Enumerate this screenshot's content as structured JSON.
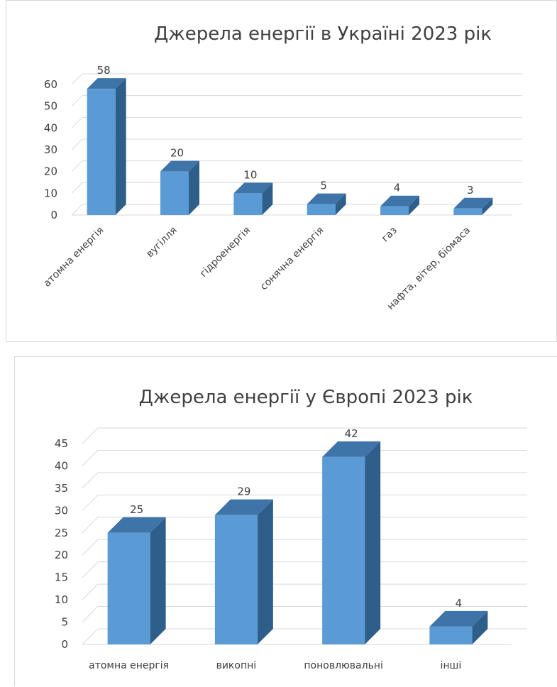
{
  "chart_data": [
    {
      "type": "bar",
      "title": "Джерела енергії в Україні 2023 рік",
      "categories": [
        "атомна енергія",
        "вугілля",
        "гідроенергія",
        "сонячна енергія",
        "газ",
        "нафта, вітер, біомаса"
      ],
      "values": [
        58,
        20,
        10,
        5,
        4,
        3
      ],
      "yticks": [
        0,
        10,
        20,
        30,
        40,
        50,
        60
      ],
      "ylim": [
        0,
        60
      ],
      "grid": true,
      "legend": "none",
      "style": "3d-column",
      "colors": {
        "front": "#5b9bd5",
        "side": "#2e5f8a",
        "top": "#3f74a8"
      }
    },
    {
      "type": "bar",
      "title": "Джерела енергії у Європі 2023 рік",
      "categories": [
        "атомна енергія",
        "викопні",
        "поновлювальні",
        "інші"
      ],
      "values": [
        25,
        29,
        42,
        4
      ],
      "yticks": [
        0,
        5,
        10,
        15,
        20,
        25,
        30,
        35,
        40,
        45
      ],
      "ylim": [
        0,
        45
      ],
      "grid": true,
      "legend": "none",
      "style": "3d-column",
      "colors": {
        "front": "#5b9bd5",
        "side": "#2e5f8a",
        "top": "#3f74a8"
      }
    }
  ]
}
